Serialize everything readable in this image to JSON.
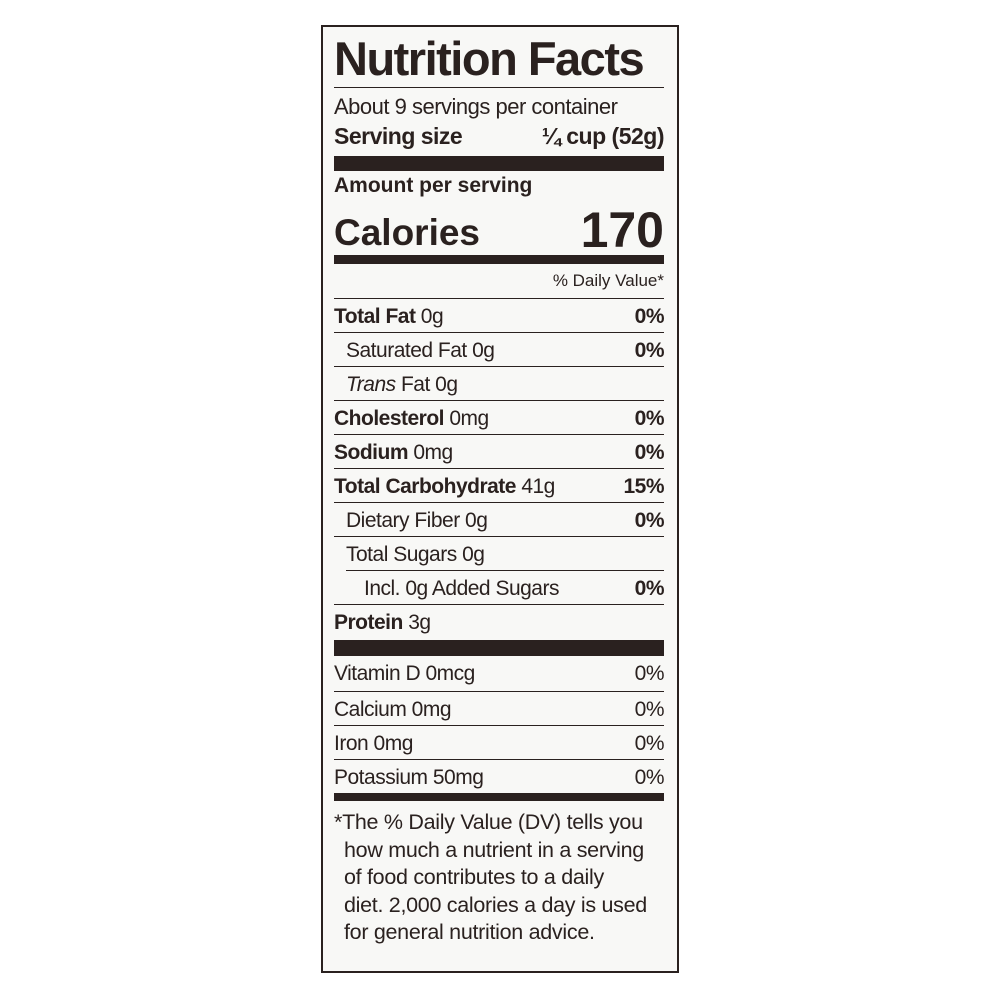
{
  "title": "Nutrition Facts",
  "servings_per_container": "About 9 servings per container",
  "serving_size": {
    "label": "Serving size",
    "value": "¼ cup (52g)"
  },
  "amount_per_serving": "Amount per serving",
  "calories": {
    "label": "Calories",
    "value": "170"
  },
  "daily_value_header": "% Daily Value*",
  "nutrients": [
    {
      "name": "Total Fat",
      "amount": "0g",
      "dv": "0%",
      "bold": true,
      "indent": 0
    },
    {
      "name": "Saturated Fat",
      "amount": "0g",
      "dv": "0%",
      "bold": false,
      "indent": 1
    },
    {
      "name": "Trans",
      "name_suffix": "Fat",
      "amount": "0g",
      "dv": "",
      "bold": false,
      "indent": 1
    },
    {
      "name": "Cholesterol",
      "amount": "0mg",
      "dv": "0%",
      "bold": true,
      "indent": 0
    },
    {
      "name": "Sodium",
      "amount": "0mg",
      "dv": "0%",
      "bold": true,
      "indent": 0
    },
    {
      "name": "Total Carbohydrate",
      "amount": "41g",
      "dv": "15%",
      "bold": true,
      "indent": 0
    },
    {
      "name": "Dietary Fiber",
      "amount": "0g",
      "dv": "0%",
      "bold": false,
      "indent": 1
    },
    {
      "name": "Total Sugars",
      "amount": "0g",
      "dv": "",
      "bold": false,
      "indent": 1
    },
    {
      "name": "Incl. 0g Added Sugars",
      "amount": "",
      "dv": "0%",
      "bold": false,
      "indent": 2
    },
    {
      "name": "Protein",
      "amount": "3g",
      "dv": "",
      "bold": true,
      "indent": 0
    }
  ],
  "vitamins": [
    {
      "name": "Vitamin D 0mcg",
      "dv": "0%"
    },
    {
      "name": "Calcium 0mg",
      "dv": "0%"
    },
    {
      "name": "Iron 0mg",
      "dv": "0%"
    },
    {
      "name": "Potassium 50mg",
      "dv": "0%"
    }
  ],
  "footnote_lines": [
    "*The % Daily Value (DV) tells you",
    "how much a nutrient in a serving",
    "of food contributes to a daily",
    "diet. 2,000 calories a day is used",
    "for general nutrition advice."
  ],
  "colors": {
    "text": "#2a211f",
    "background": "#f8f8f6"
  }
}
